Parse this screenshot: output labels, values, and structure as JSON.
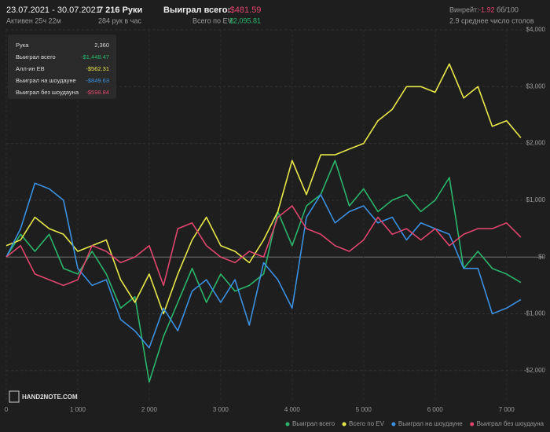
{
  "header": {
    "date_range": "23.07.2021 - 30.07.2021",
    "active": "Активен 25ч 22м",
    "hands": "7 216 Руки",
    "hands_per_hour": "284 рук в час",
    "won_label": "Выиграл всего:",
    "won_value": "-$481.59",
    "ev_label": "Всего по EV:",
    "ev_value": "$2,095.81",
    "winrate_label": "Винрейт:",
    "winrate_value": "-1.92",
    "winrate_unit": "бб/100",
    "tables": "2.9 среднее число столов"
  },
  "tooltip": {
    "rows": [
      [
        "Рука",
        "2,360"
      ],
      [
        "Выиграл всего",
        "-$1,448.47"
      ],
      [
        "Алл-ин EB",
        "-$562.31"
      ],
      [
        "Выиграл на шоудауне",
        "-$849.63"
      ],
      [
        "Выиграл без шоудауна",
        "-$598.84"
      ]
    ]
  },
  "logo": "HAND2NOTE.COM",
  "chart_data": {
    "type": "line",
    "x": [
      0,
      200,
      400,
      600,
      800,
      1000,
      1200,
      1400,
      1600,
      1800,
      2000,
      2200,
      2400,
      2600,
      2800,
      3000,
      3200,
      3400,
      3600,
      3800,
      4000,
      4200,
      4400,
      4600,
      4800,
      5000,
      5200,
      5400,
      5600,
      5800,
      6000,
      6200,
      6400,
      6600,
      6800,
      7000,
      7200
    ],
    "series": [
      {
        "name": "Выиграл всего",
        "color": "#2ab56b",
        "values": [
          0,
          400,
          100,
          400,
          -200,
          -300,
          100,
          -300,
          -900,
          -700,
          -2200,
          -1400,
          -800,
          -200,
          -800,
          -300,
          -600,
          -500,
          -300,
          800,
          200,
          900,
          1100,
          1700,
          900,
          1200,
          800,
          1000,
          1100,
          800,
          1000,
          1400,
          -200,
          100,
          -200,
          -300,
          -450
        ]
      },
      {
        "name": "Всего по EV",
        "color": "#e8e84a",
        "values": [
          200,
          300,
          700,
          500,
          400,
          100,
          200,
          300,
          -400,
          -800,
          -300,
          -1000,
          -300,
          300,
          700,
          200,
          100,
          -100,
          300,
          800,
          1700,
          1100,
          1800,
          1800,
          1900,
          2000,
          2400,
          2600,
          3000,
          3000,
          2900,
          3400,
          2800,
          3000,
          2300,
          2400,
          2100
        ]
      },
      {
        "name": "Выиграл на шоудауне",
        "color": "#3a8fe0",
        "values": [
          0,
          500,
          1300,
          1200,
          1000,
          -200,
          -500,
          -400,
          -1100,
          -1300,
          -1600,
          -900,
          -1300,
          -600,
          -400,
          -800,
          -400,
          -1200,
          -100,
          -400,
          -900,
          700,
          1100,
          600,
          800,
          900,
          600,
          700,
          300,
          600,
          500,
          400,
          -200,
          -200,
          -1000,
          -900,
          -750
        ]
      },
      {
        "name": "Выиграл без шоудауна",
        "color": "#e0456e",
        "values": [
          0,
          200,
          -300,
          -400,
          -500,
          -400,
          200,
          100,
          -100,
          0,
          200,
          -500,
          500,
          600,
          200,
          0,
          -100,
          100,
          0,
          700,
          900,
          500,
          400,
          200,
          100,
          300,
          700,
          400,
          500,
          300,
          500,
          200,
          400,
          500,
          500,
          600,
          350
        ]
      }
    ],
    "xlim": [
      0,
      7300
    ],
    "xticks": [
      0,
      {
        "value": 1000,
        "label": "1 000"
      },
      {
        "value": 2000,
        "label": "2 000"
      },
      {
        "value": 3000,
        "label": "3 000"
      },
      {
        "value": 4000,
        "label": "4 000"
      },
      {
        "value": 5000,
        "label": "5 000"
      },
      {
        "value": 6000,
        "label": "6 000"
      },
      {
        "value": 7000,
        "label": "7 000"
      }
    ],
    "ylim": [
      -2400,
      4000
    ],
    "yticks": [
      {
        "value": -2000,
        "label": "-$2,000"
      },
      {
        "value": -1000,
        "label": "-$1,000"
      },
      {
        "value": 0,
        "label": "$0"
      },
      {
        "value": 1000,
        "label": "$1,000"
      },
      {
        "value": 2000,
        "label": "$2,000"
      },
      {
        "value": 3000,
        "label": "$3,000"
      },
      {
        "value": 4000,
        "label": "$4,000"
      }
    ],
    "grid": true
  }
}
